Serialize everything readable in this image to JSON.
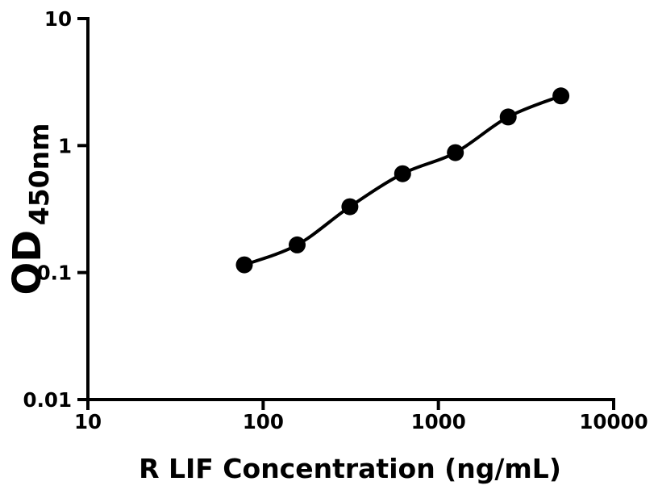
{
  "figure": {
    "background_color": "#ffffff",
    "foreground_color": "#000000"
  },
  "chart_data": {
    "type": "scatter",
    "subtype": "elisa-standard-curve",
    "title": "",
    "xlabel": "R LIF Concentration (ng/mL)",
    "ylabel_main": "OD",
    "ylabel_subscript": "450nm",
    "x_scale": "log10",
    "y_scale": "log10",
    "xlim": [
      10,
      10000
    ],
    "ylim": [
      0.01,
      10
    ],
    "x_ticks": [
      10,
      100,
      1000,
      10000
    ],
    "x_tick_labels": [
      "10",
      "100",
      "1000",
      "10000"
    ],
    "y_ticks": [
      10,
      1,
      0.1,
      0.01
    ],
    "y_tick_labels": [
      "10",
      "1",
      "0.1",
      "0.01"
    ],
    "grid": false,
    "legend": false,
    "series": [
      {
        "name": "standard-curve",
        "marker": "filled-circle",
        "marker_color": "#000000",
        "line_color": "#000000",
        "line_style": "smooth-fit",
        "x": [
          78.125,
          156.25,
          312.5,
          625,
          1250,
          2500,
          5000
        ],
        "y": [
          0.115,
          0.165,
          0.33,
          0.6,
          0.88,
          1.68,
          2.46
        ]
      }
    ]
  }
}
